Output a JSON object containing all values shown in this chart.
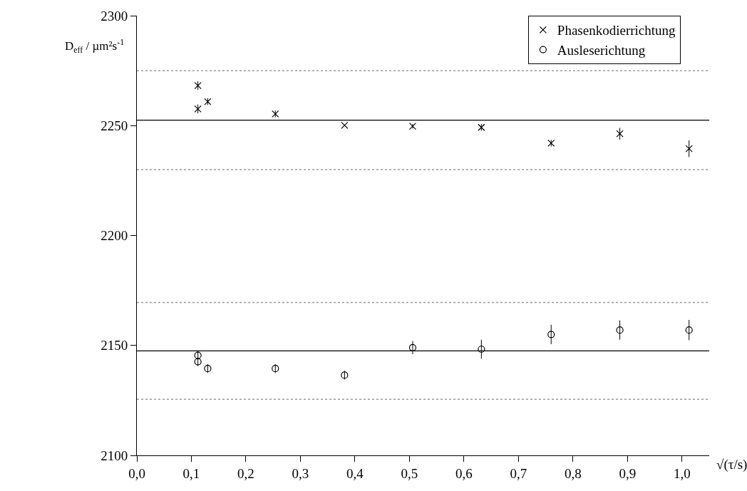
{
  "chart_data": {
    "type": "scatter",
    "xlabel": "√(τ/s)",
    "ylabel": "D$_{eff}$ / µm²s$^{-1}$",
    "x": [
      0.112,
      0.112,
      0.13,
      0.254,
      0.381,
      0.506,
      0.632,
      0.76,
      0.886,
      1.013
    ],
    "series": [
      {
        "name": "Phasenkodierrichtung",
        "color": "#000000",
        "marker": "cross",
        "values": [
          2268.2,
          2257.6,
          2260.9,
          2255.3,
          2250.1,
          2249.7,
          2249.2,
          2242.0,
          2246.3,
          2239.5
        ],
        "errors": [
          2,
          2,
          1.5,
          1.5,
          null,
          1,
          1.5,
          1.5,
          2.7,
          3.8
        ]
      },
      {
        "name": "Ausleserichtung",
        "color": "#000000",
        "marker": "circle",
        "values": [
          2145.5,
          2142.6,
          2139.5,
          2139.5,
          2136.5,
          2149.0,
          2148.3,
          2155.0,
          2157.0,
          2157.0
        ],
        "errors": [
          2,
          2,
          2,
          2,
          2,
          3,
          4.3,
          4.4,
          4.4,
          4.6
        ]
      }
    ],
    "xlim": [
      0,
      1.05
    ],
    "xticks": [
      {
        "value": 0,
        "label": "0,0"
      },
      {
        "value": 0.1,
        "label": "0,1"
      },
      {
        "value": 0.2,
        "label": "0,2"
      },
      {
        "value": 0.3,
        "label": "0,3"
      },
      {
        "value": 0.4,
        "label": "0,4"
      },
      {
        "value": 0.5,
        "label": "0,5"
      },
      {
        "value": 0.6,
        "label": "0,6"
      },
      {
        "value": 0.7,
        "label": "0,7"
      },
      {
        "value": 0.8,
        "label": "0,8"
      },
      {
        "value": 0.9,
        "label": "0,9"
      },
      {
        "value": 1.0,
        "label": "1,0"
      }
    ],
    "ylim": [
      2100,
      2300
    ],
    "yticks": [
      2100,
      2150,
      2200,
      2250,
      2300
    ],
    "ref_lines": [
      {
        "axis": "y",
        "value": 2252.5,
        "color": "#000000",
        "line_style": "solid"
      },
      {
        "axis": "y",
        "value": 2275,
        "color": "#999999",
        "line_style": "dotted"
      },
      {
        "axis": "y",
        "value": 2230,
        "color": "#999999",
        "line_style": "dotted"
      },
      {
        "axis": "y",
        "value": 2147.5,
        "color": "#000000",
        "line_style": "solid"
      },
      {
        "axis": "y",
        "value": 2169.5,
        "color": "#999999",
        "line_style": "dotted"
      },
      {
        "axis": "y",
        "value": 2125.5,
        "color": "#999999",
        "line_style": "dotted"
      }
    ],
    "grid": false,
    "legend": "top right"
  }
}
